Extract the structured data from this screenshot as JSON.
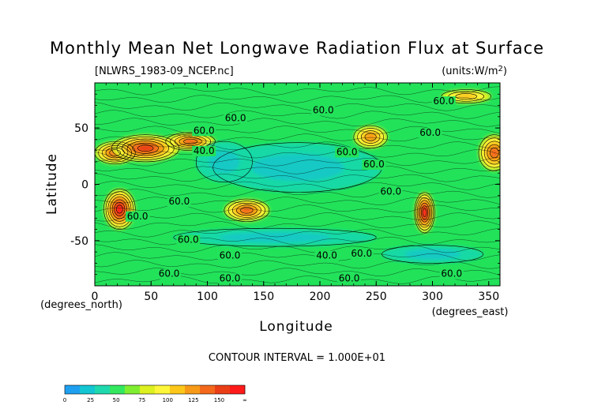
{
  "chart_data": {
    "type": "heatmap",
    "title": "Monthly Mean Net Longwave Radiation Flux at Surface",
    "source_label": "[NLWRS_1983-09_NCEP.nc]",
    "units_label": "(units:W/m^2)",
    "xlabel": "Longitude",
    "ylabel": "Latitude",
    "x_unit_label": "(degrees_east)",
    "y_unit_label": "(degrees_north)",
    "xlim": [
      0,
      360
    ],
    "ylim": [
      -90,
      90
    ],
    "x_ticks": [
      0,
      50,
      100,
      150,
      200,
      250,
      300,
      350
    ],
    "y_ticks": [
      50,
      0,
      -50
    ],
    "contour_interval_text": "CONTOUR INTERVAL = 1.000E+01",
    "contour_labels": [
      {
        "text": "60.0",
        "lon": 125,
        "lat": 56
      },
      {
        "text": "60.0",
        "lon": 203,
        "lat": 63
      },
      {
        "text": "60.0",
        "lon": 310,
        "lat": 71
      },
      {
        "text": "60.0",
        "lon": 97,
        "lat": 45
      },
      {
        "text": "60.0",
        "lon": 248,
        "lat": 15
      },
      {
        "text": "60.0",
        "lon": 298,
        "lat": 43
      },
      {
        "text": "40.0",
        "lon": 97,
        "lat": 27
      },
      {
        "text": "60.0",
        "lon": 224,
        "lat": 26
      },
      {
        "text": "60.0",
        "lon": 75,
        "lat": -18
      },
      {
        "text": "60.0",
        "lon": 38,
        "lat": -31
      },
      {
        "text": "60.0",
        "lon": 263,
        "lat": -9
      },
      {
        "text": "60.0",
        "lon": 83,
        "lat": -52
      },
      {
        "text": "60.0",
        "lon": 120,
        "lat": -66
      },
      {
        "text": "40.0",
        "lon": 206,
        "lat": -66
      },
      {
        "text": "60.0",
        "lon": 237,
        "lat": -64
      },
      {
        "text": "60.0",
        "lon": 66,
        "lat": -82
      },
      {
        "text": "60.0",
        "lon": 120,
        "lat": -86
      },
      {
        "text": "60.0",
        "lon": 226,
        "lat": -86
      },
      {
        "text": "60.0",
        "lon": 317,
        "lat": -82
      }
    ],
    "colorbar": {
      "ticks": [
        "0",
        "25",
        "50",
        "75",
        "100",
        "125",
        "150",
        "∞"
      ],
      "colors": [
        "#1e9ff0",
        "#12c6d2",
        "#1fd9ae",
        "#33e85f",
        "#80ee30",
        "#ddf020",
        "#fef63a",
        "#fcc71a",
        "#f79a18",
        "#f3681b",
        "#ea3e16",
        "#ff1a1a"
      ]
    },
    "background_color": "#22e25a",
    "features": [
      {
        "kind": "warm",
        "lon": 18,
        "lat": 28,
        "rx": 18,
        "ry": 10,
        "value": 130
      },
      {
        "kind": "warm",
        "lon": 45,
        "lat": 32,
        "rx": 30,
        "ry": 12,
        "value": 145
      },
      {
        "kind": "warm",
        "lon": 85,
        "lat": 38,
        "rx": 22,
        "ry": 8,
        "value": 120
      },
      {
        "kind": "warm",
        "lon": 22,
        "lat": -22,
        "rx": 14,
        "ry": 18,
        "value": 150
      },
      {
        "kind": "warm",
        "lon": 135,
        "lat": -23,
        "rx": 20,
        "ry": 10,
        "value": 120
      },
      {
        "kind": "warm",
        "lon": 245,
        "lat": 42,
        "rx": 15,
        "ry": 10,
        "value": 110
      },
      {
        "kind": "warm",
        "lon": 293,
        "lat": -25,
        "rx": 9,
        "ry": 18,
        "value": 150
      },
      {
        "kind": "warm",
        "lon": 355,
        "lat": 28,
        "rx": 14,
        "ry": 16,
        "value": 120
      },
      {
        "kind": "warm",
        "lon": 330,
        "lat": 78,
        "rx": 22,
        "ry": 6,
        "value": 100
      },
      {
        "kind": "cool",
        "lon": 180,
        "lat": 15,
        "rx": 75,
        "ry": 22,
        "value": 35
      },
      {
        "kind": "cool",
        "lon": 160,
        "lat": -47,
        "rx": 90,
        "ry": 8,
        "value": 35
      },
      {
        "kind": "cool",
        "lon": 300,
        "lat": -62,
        "rx": 45,
        "ry": 8,
        "value": 35
      },
      {
        "kind": "cool",
        "lon": 115,
        "lat": 20,
        "rx": 25,
        "ry": 18,
        "value": 40
      }
    ]
  }
}
